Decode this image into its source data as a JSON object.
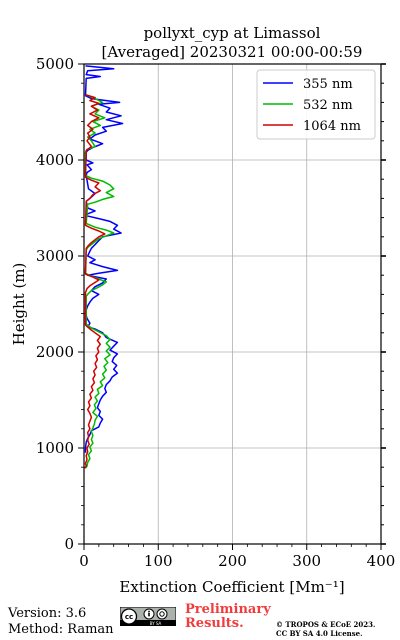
{
  "chart_data": {
    "type": "line",
    "title_line1": "pollyxt_cyp at Limassol",
    "title_line2": "[Averaged] 20230321 00:00-00:59",
    "xlabel": "Extinction Coefficient [Mm⁻¹]",
    "ylabel": "Height (m)",
    "xlim": [
      0,
      400
    ],
    "ylim": [
      0,
      5000
    ],
    "xticks": [
      "0",
      "100",
      "200",
      "300",
      "400"
    ],
    "yticks": [
      "0",
      "1000",
      "2000",
      "3000",
      "4000",
      "5000"
    ],
    "grid": true,
    "legend_position": "top-right",
    "series": [
      {
        "name": "355 nm",
        "color": "#0000ff",
        "points": [
          [
            2,
            4980
          ],
          [
            40,
            4950
          ],
          [
            5,
            4930
          ],
          [
            3,
            4890
          ],
          [
            22,
            4870
          ],
          [
            3,
            4850
          ],
          [
            2,
            4670
          ],
          [
            10,
            4640
          ],
          [
            48,
            4600
          ],
          [
            20,
            4580
          ],
          [
            35,
            4540
          ],
          [
            30,
            4500
          ],
          [
            50,
            4460
          ],
          [
            30,
            4420
          ],
          [
            52,
            4380
          ],
          [
            25,
            4340
          ],
          [
            30,
            4300
          ],
          [
            15,
            4260
          ],
          [
            8,
            4220
          ],
          [
            25,
            4170
          ],
          [
            12,
            4130
          ],
          [
            5,
            4100
          ],
          [
            3,
            4080
          ],
          [
            3,
            4000
          ],
          [
            12,
            3970
          ],
          [
            4,
            3950
          ],
          [
            10,
            3900
          ],
          [
            4,
            3870
          ],
          [
            3,
            3840
          ],
          [
            6,
            3700
          ],
          [
            15,
            3650
          ],
          [
            8,
            3600
          ],
          [
            3,
            3570
          ],
          [
            5,
            3500
          ],
          [
            15,
            3470
          ],
          [
            5,
            3440
          ],
          [
            3,
            3420
          ],
          [
            20,
            3390
          ],
          [
            35,
            3360
          ],
          [
            45,
            3320
          ],
          [
            40,
            3280
          ],
          [
            50,
            3240
          ],
          [
            25,
            3200
          ],
          [
            20,
            3160
          ],
          [
            15,
            3120
          ],
          [
            10,
            3080
          ],
          [
            8,
            3050
          ],
          [
            5,
            3000
          ],
          [
            15,
            2960
          ],
          [
            8,
            2930
          ],
          [
            25,
            2890
          ],
          [
            45,
            2850
          ],
          [
            20,
            2820
          ],
          [
            5,
            2800
          ],
          [
            30,
            2760
          ],
          [
            25,
            2720
          ],
          [
            15,
            2680
          ],
          [
            10,
            2640
          ],
          [
            20,
            2600
          ],
          [
            12,
            2560
          ],
          [
            8,
            2520
          ],
          [
            5,
            2480
          ],
          [
            3,
            2440
          ],
          [
            2,
            2400
          ],
          [
            4,
            2350
          ],
          [
            8,
            2300
          ],
          [
            5,
            2260
          ],
          [
            15,
            2240
          ],
          [
            25,
            2200
          ],
          [
            30,
            2150
          ],
          [
            45,
            2100
          ],
          [
            40,
            2060
          ],
          [
            35,
            2020
          ],
          [
            45,
            1980
          ],
          [
            40,
            1940
          ],
          [
            38,
            1900
          ],
          [
            44,
            1860
          ],
          [
            40,
            1820
          ],
          [
            45,
            1780
          ],
          [
            38,
            1740
          ],
          [
            35,
            1700
          ],
          [
            30,
            1660
          ],
          [
            28,
            1620
          ],
          [
            30,
            1580
          ],
          [
            25,
            1540
          ],
          [
            22,
            1500
          ],
          [
            20,
            1460
          ],
          [
            18,
            1420
          ],
          [
            22,
            1380
          ],
          [
            20,
            1340
          ],
          [
            25,
            1300
          ],
          [
            22,
            1260
          ],
          [
            20,
            1220
          ],
          [
            10,
            1180
          ],
          [
            8,
            1140
          ],
          [
            5,
            1100
          ],
          [
            3,
            1060
          ],
          [
            2,
            1000
          ],
          [
            2,
            950
          ]
        ]
      },
      {
        "name": "532 nm",
        "color": "#00bb00",
        "points": [
          [
            2,
            4680
          ],
          [
            15,
            4640
          ],
          [
            25,
            4600
          ],
          [
            10,
            4560
          ],
          [
            20,
            4520
          ],
          [
            15,
            4480
          ],
          [
            28,
            4440
          ],
          [
            12,
            4400
          ],
          [
            22,
            4360
          ],
          [
            8,
            4320
          ],
          [
            15,
            4280
          ],
          [
            5,
            4240
          ],
          [
            10,
            4200
          ],
          [
            15,
            4140
          ],
          [
            4,
            4110
          ],
          [
            2,
            4080
          ],
          [
            2,
            3840
          ],
          [
            10,
            3810
          ],
          [
            25,
            3780
          ],
          [
            35,
            3740
          ],
          [
            40,
            3700
          ],
          [
            30,
            3660
          ],
          [
            40,
            3620
          ],
          [
            25,
            3590
          ],
          [
            15,
            3560
          ],
          [
            5,
            3540
          ],
          [
            3,
            3340
          ],
          [
            15,
            3300
          ],
          [
            30,
            3270
          ],
          [
            40,
            3240
          ],
          [
            30,
            3210
          ],
          [
            20,
            3180
          ],
          [
            15,
            3150
          ],
          [
            10,
            3120
          ],
          [
            5,
            3090
          ],
          [
            3,
            3060
          ],
          [
            2,
            2820
          ],
          [
            10,
            2790
          ],
          [
            20,
            2760
          ],
          [
            30,
            2730
          ],
          [
            25,
            2700
          ],
          [
            18,
            2670
          ],
          [
            10,
            2640
          ],
          [
            6,
            2610
          ],
          [
            3,
            2580
          ],
          [
            3,
            2290
          ],
          [
            10,
            2250
          ],
          [
            20,
            2210
          ],
          [
            30,
            2170
          ],
          [
            35,
            2130
          ],
          [
            30,
            2090
          ],
          [
            35,
            2050
          ],
          [
            30,
            2010
          ],
          [
            35,
            1970
          ],
          [
            28,
            1930
          ],
          [
            32,
            1890
          ],
          [
            27,
            1850
          ],
          [
            30,
            1810
          ],
          [
            25,
            1770
          ],
          [
            28,
            1730
          ],
          [
            22,
            1690
          ],
          [
            25,
            1650
          ],
          [
            18,
            1610
          ],
          [
            20,
            1570
          ],
          [
            15,
            1530
          ],
          [
            18,
            1490
          ],
          [
            14,
            1450
          ],
          [
            16,
            1410
          ],
          [
            12,
            1370
          ],
          [
            18,
            1330
          ],
          [
            15,
            1290
          ],
          [
            14,
            1250
          ],
          [
            12,
            1210
          ],
          [
            10,
            1170
          ],
          [
            12,
            1130
          ],
          [
            10,
            1090
          ],
          [
            12,
            1050
          ],
          [
            8,
            1010
          ],
          [
            10,
            970
          ],
          [
            6,
            930
          ],
          [
            8,
            890
          ],
          [
            5,
            850
          ],
          [
            4,
            810
          ],
          [
            2,
            790
          ]
        ]
      },
      {
        "name": "1064 nm",
        "color": "#d40000",
        "points": [
          [
            2,
            4680
          ],
          [
            15,
            4650
          ],
          [
            8,
            4620
          ],
          [
            20,
            4590
          ],
          [
            10,
            4560
          ],
          [
            18,
            4520
          ],
          [
            8,
            4480
          ],
          [
            20,
            4440
          ],
          [
            10,
            4400
          ],
          [
            5,
            4360
          ],
          [
            12,
            4320
          ],
          [
            5,
            4280
          ],
          [
            8,
            4240
          ],
          [
            4,
            4200
          ],
          [
            10,
            4140
          ],
          [
            3,
            4100
          ],
          [
            2,
            3820
          ],
          [
            10,
            3790
          ],
          [
            20,
            3760
          ],
          [
            15,
            3720
          ],
          [
            22,
            3680
          ],
          [
            12,
            3640
          ],
          [
            8,
            3600
          ],
          [
            3,
            3570
          ],
          [
            2,
            3320
          ],
          [
            10,
            3290
          ],
          [
            20,
            3260
          ],
          [
            28,
            3230
          ],
          [
            20,
            3200
          ],
          [
            15,
            3170
          ],
          [
            10,
            3140
          ],
          [
            6,
            3110
          ],
          [
            3,
            3080
          ],
          [
            2,
            2810
          ],
          [
            12,
            2780
          ],
          [
            20,
            2750
          ],
          [
            14,
            2720
          ],
          [
            8,
            2690
          ],
          [
            4,
            2660
          ],
          [
            2,
            2620
          ],
          [
            2,
            2280
          ],
          [
            8,
            2240
          ],
          [
            15,
            2200
          ],
          [
            22,
            2160
          ],
          [
            18,
            2120
          ],
          [
            22,
            2080
          ],
          [
            18,
            2040
          ],
          [
            20,
            2000
          ],
          [
            16,
            1960
          ],
          [
            18,
            1920
          ],
          [
            15,
            1880
          ],
          [
            17,
            1840
          ],
          [
            13,
            1800
          ],
          [
            15,
            1760
          ],
          [
            12,
            1720
          ],
          [
            14,
            1680
          ],
          [
            10,
            1640
          ],
          [
            12,
            1600
          ],
          [
            8,
            1560
          ],
          [
            10,
            1520
          ],
          [
            6,
            1480
          ],
          [
            8,
            1440
          ],
          [
            5,
            1400
          ],
          [
            8,
            1360
          ],
          [
            10,
            1320
          ],
          [
            8,
            1280
          ],
          [
            6,
            1240
          ],
          [
            8,
            1200
          ],
          [
            5,
            1160
          ],
          [
            6,
            1120
          ],
          [
            5,
            1080
          ],
          [
            7,
            1040
          ],
          [
            4,
            1000
          ],
          [
            5,
            960
          ],
          [
            3,
            920
          ],
          [
            4,
            880
          ],
          [
            2,
            840
          ],
          [
            3,
            810
          ],
          [
            1,
            790
          ]
        ]
      }
    ]
  },
  "footer": {
    "version": "Version: 3.6",
    "method": "Method: Raman",
    "preliminary_line1": "Preliminary",
    "preliminary_line2": "Results.",
    "copyright_line1": "© TROPOS & ECoE 2023.",
    "copyright_line2": "CC BY SA 4.0 License.",
    "license_logo_text": "BY SA"
  }
}
